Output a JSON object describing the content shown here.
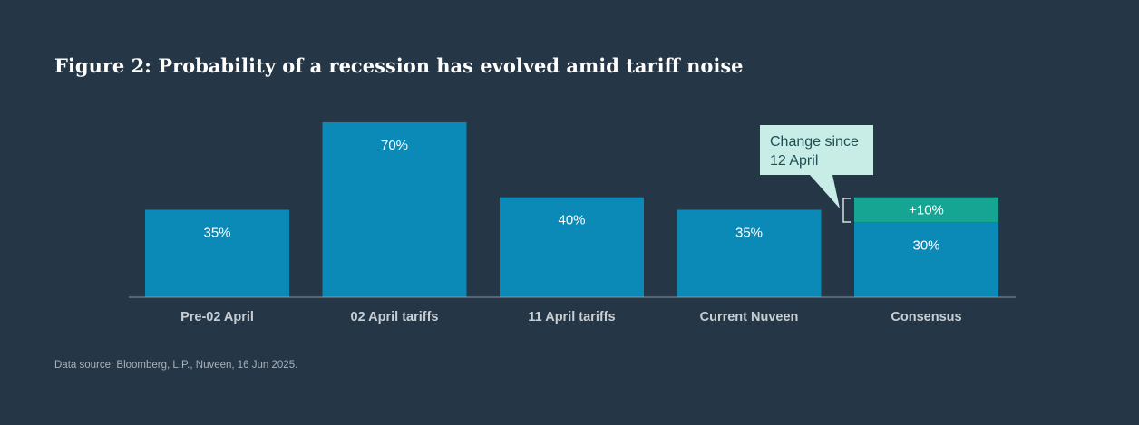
{
  "chart_data": {
    "type": "bar",
    "title": "Figure 2: Probability of a recession has evolved amid tariff noise",
    "categories": [
      "Pre-02 April",
      "02 April tariffs",
      "11 April tariffs",
      "Current Nuveen",
      "Consensus"
    ],
    "series": [
      {
        "values": [
          35,
          70,
          40,
          35,
          30
        ],
        "labels": [
          "35%",
          "70%",
          "40%",
          "35%",
          "30%"
        ],
        "color": "#0b8ab8"
      },
      {
        "values": [
          0,
          0,
          0,
          0,
          10
        ],
        "labels": [
          "",
          "",
          "",
          "",
          "+10%"
        ],
        "color": "#16a592"
      }
    ],
    "stacked": true,
    "ylim": [
      0,
      70
    ],
    "grid": false,
    "annotation": {
      "text_lines": [
        "Change since",
        "12 April"
      ],
      "target_category": "Consensus",
      "background": "#c8ece6"
    },
    "source": "Data source: Bloomberg, L.P., Nuveen, 16 Jun 2025."
  }
}
